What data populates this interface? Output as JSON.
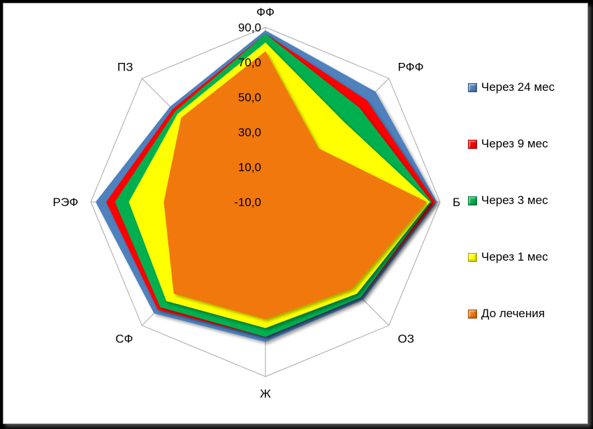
{
  "chart_data": {
    "type": "radar",
    "axes": [
      "ФФ",
      "РФФ",
      "Б",
      "ОЗ",
      "Ж",
      "СФ",
      "РЭФ",
      "ПЗ"
    ],
    "rlim": [
      -10,
      90
    ],
    "tick_values": [
      90,
      70,
      50,
      30,
      10,
      -10
    ],
    "tick_labels": [
      "90,0",
      "70,0",
      "50,0",
      "30,0",
      "10,0",
      "-10,0"
    ],
    "grid": true,
    "legend_position": "right",
    "series": [
      {
        "name": "Через 24 мес",
        "color": "#4f81bd",
        "values": [
          88,
          79,
          88,
          69,
          70,
          80,
          87,
          67
        ]
      },
      {
        "name": "Через 9 мес",
        "color": "#ff0000",
        "values": [
          86,
          72,
          87,
          67,
          67,
          77,
          81,
          65
        ]
      },
      {
        "name": "Через 3 мес",
        "color": "#00b050",
        "values": [
          86,
          66,
          85,
          67,
          67,
          75,
          76,
          63
        ]
      },
      {
        "name": "Через 1 мес",
        "color": "#ffff00",
        "values": [
          81,
          54,
          84,
          64,
          62,
          70,
          68,
          61
        ]
      },
      {
        "name": "До лечения",
        "color": "#f07810",
        "values": [
          76,
          33,
          82,
          60,
          57,
          64,
          48,
          58
        ]
      }
    ]
  }
}
